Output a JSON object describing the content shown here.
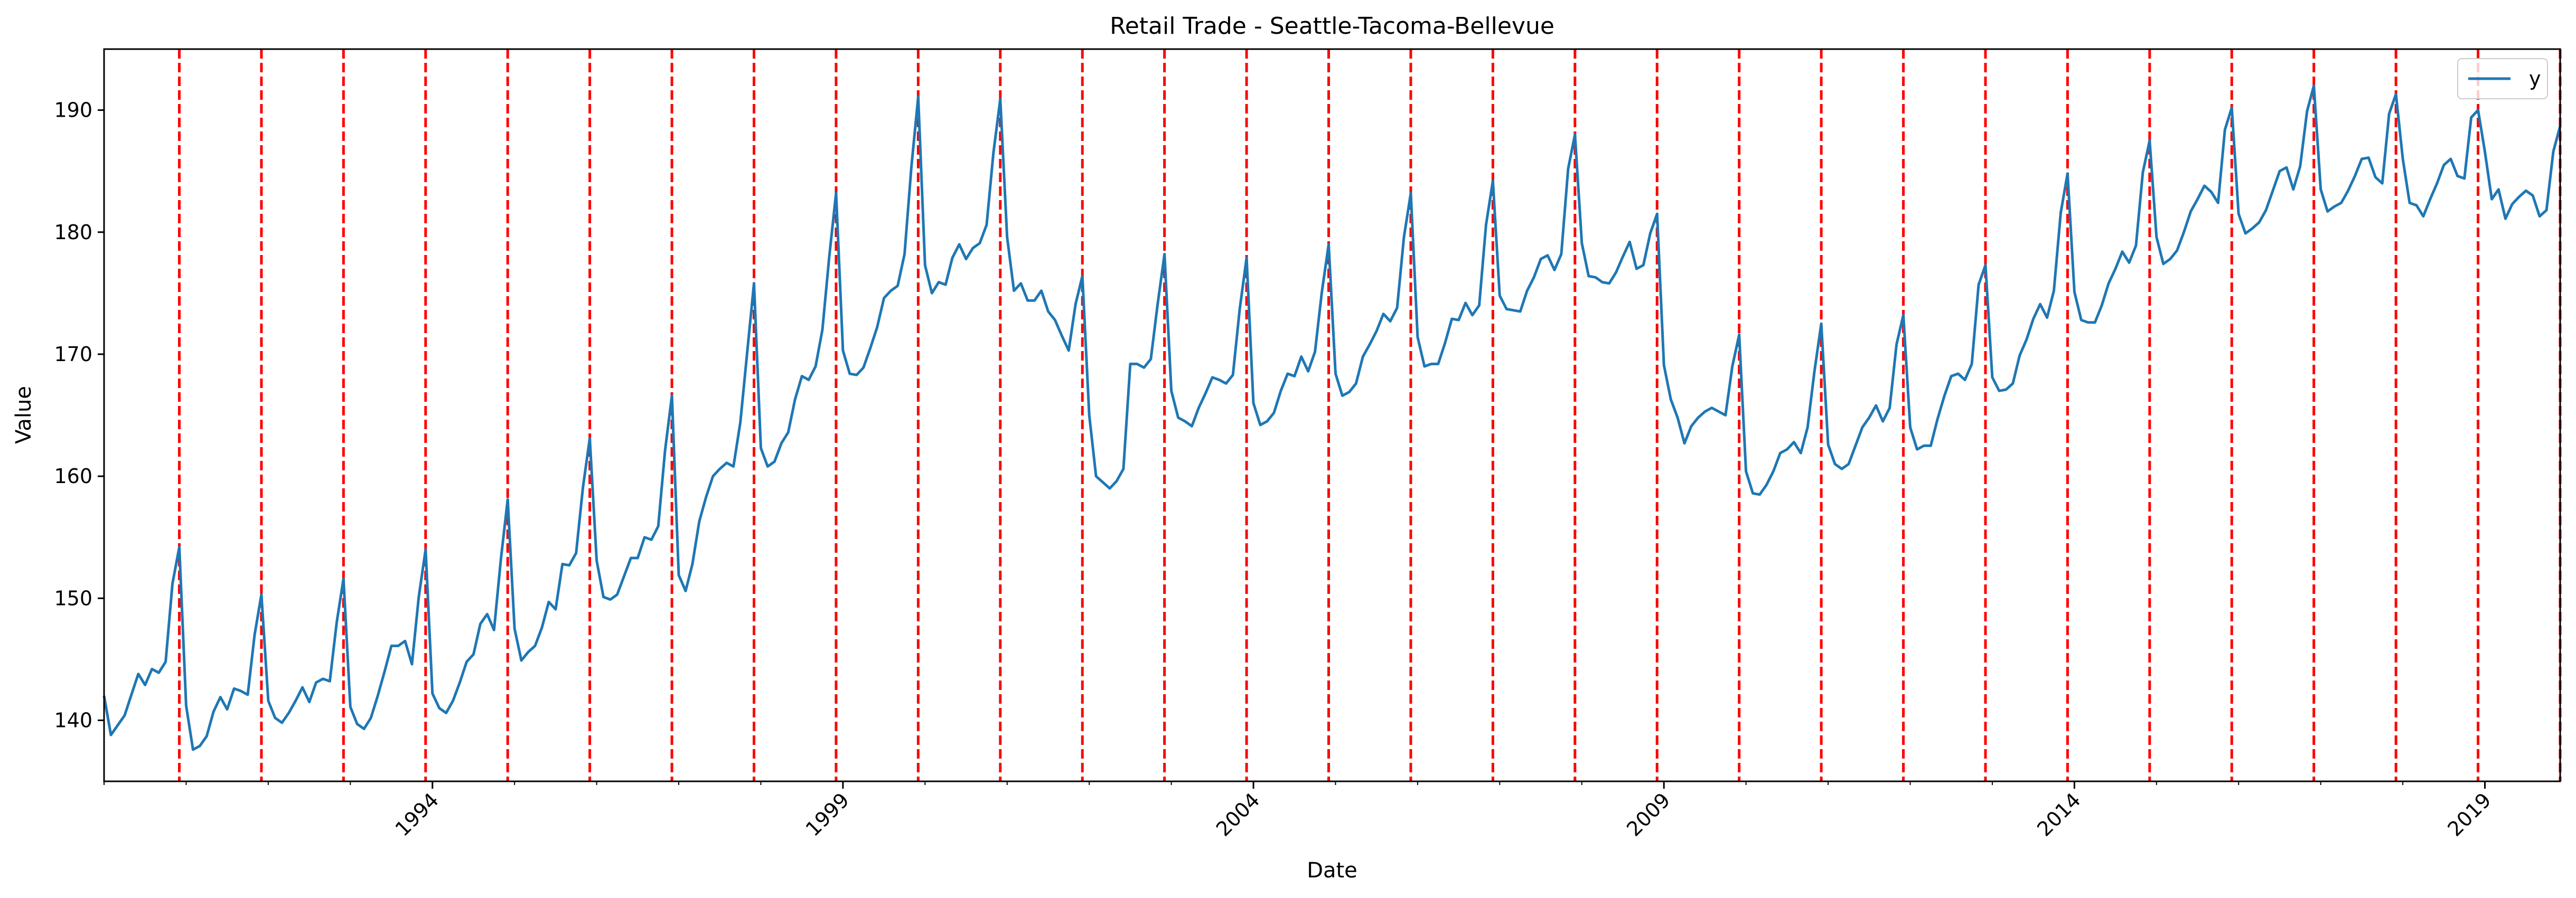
{
  "chart_data": {
    "type": "line",
    "title": "Retail Trade - Seattle-Tacoma-Bellevue",
    "xlabel": "Date",
    "ylabel": "Value",
    "x_range": [
      "1990-01",
      "2019-12"
    ],
    "ylim": [
      135,
      195
    ],
    "y_ticks": [
      140,
      150,
      160,
      170,
      180,
      190
    ],
    "x_ticks": [
      "1994",
      "1999",
      "2004",
      "2009",
      "2014",
      "2019"
    ],
    "grid": false,
    "legend_position": "top-right",
    "series": [
      {
        "name": "y",
        "color": "#1f77b4",
        "x_start": "1990-01",
        "frequency": "monthly",
        "values": [
          142.0,
          138.8,
          139.6,
          140.4,
          142.1,
          143.8,
          142.9,
          144.2,
          143.9,
          144.8,
          151.2,
          154.2,
          141.2,
          137.6,
          137.9,
          138.7,
          140.7,
          141.9,
          140.9,
          142.6,
          142.4,
          142.1,
          147.0,
          150.3,
          141.6,
          140.2,
          139.8,
          140.6,
          141.6,
          142.7,
          141.5,
          143.1,
          143.4,
          143.2,
          148.0,
          151.6,
          141.1,
          139.7,
          139.3,
          140.2,
          142.0,
          144.0,
          146.1,
          146.1,
          146.5,
          144.6,
          150.1,
          154.0,
          142.2,
          141.0,
          140.6,
          141.6,
          143.1,
          144.8,
          145.4,
          147.9,
          148.7,
          147.4,
          153.2,
          158.1,
          147.5,
          144.9,
          145.6,
          146.1,
          147.6,
          149.7,
          149.1,
          152.8,
          152.7,
          153.7,
          159.1,
          163.1,
          153.1,
          150.1,
          149.9,
          150.3,
          151.8,
          153.3,
          153.3,
          155.0,
          154.8,
          155.9,
          162.1,
          166.6,
          151.9,
          150.6,
          152.8,
          156.3,
          158.3,
          160.0,
          160.6,
          161.1,
          160.8,
          164.4,
          170.1,
          175.8,
          162.3,
          160.8,
          161.2,
          162.7,
          163.6,
          166.3,
          168.2,
          167.9,
          169.0,
          172.0,
          178.0,
          183.2,
          170.3,
          168.4,
          168.3,
          168.9,
          170.5,
          172.2,
          174.6,
          175.2,
          175.6,
          178.2,
          185.3,
          191.1,
          177.3,
          175.0,
          175.9,
          175.7,
          177.9,
          179.0,
          177.8,
          178.7,
          179.1,
          180.6,
          186.5,
          190.9,
          179.6,
          175.2,
          175.8,
          174.4,
          174.4,
          175.2,
          173.5,
          172.8,
          171.5,
          170.3,
          174.1,
          176.4,
          165.0,
          160.0,
          159.5,
          159.0,
          159.6,
          160.6,
          169.2,
          169.2,
          168.9,
          169.6,
          174.1,
          178.2,
          167.0,
          164.8,
          164.5,
          164.1,
          165.6,
          166.8,
          168.1,
          167.9,
          167.6,
          168.3,
          173.7,
          177.9,
          166.0,
          164.2,
          164.5,
          165.2,
          167.0,
          168.4,
          168.2,
          169.8,
          168.6,
          170.2,
          175.1,
          179.0,
          168.4,
          166.6,
          166.9,
          167.6,
          169.8,
          170.8,
          171.9,
          173.3,
          172.7,
          173.8,
          179.6,
          183.2,
          171.4,
          169.0,
          169.2,
          169.2,
          170.9,
          172.9,
          172.8,
          174.2,
          173.2,
          174.0,
          180.6,
          184.2,
          174.8,
          173.7,
          173.6,
          173.5,
          175.2,
          176.3,
          177.8,
          178.1,
          176.9,
          178.2,
          185.2,
          188.0,
          179.1,
          176.4,
          176.3,
          175.9,
          175.8,
          176.7,
          178.0,
          179.2,
          177.0,
          177.3,
          179.9,
          181.5,
          169.1,
          166.3,
          164.8,
          162.7,
          164.1,
          164.8,
          165.3,
          165.6,
          165.3,
          165.0,
          169.0,
          171.6,
          160.4,
          158.6,
          158.5,
          159.3,
          160.4,
          161.9,
          162.2,
          162.8,
          161.9,
          164.0,
          168.6,
          172.5,
          162.6,
          161.0,
          160.6,
          161.0,
          162.5,
          164.0,
          164.8,
          165.8,
          164.5,
          165.6,
          170.8,
          173.2,
          164.0,
          162.2,
          162.5,
          162.5,
          164.7,
          166.6,
          168.2,
          168.4,
          167.9,
          169.2,
          175.7,
          177.3,
          168.1,
          167.0,
          167.1,
          167.6,
          169.9,
          171.2,
          172.9,
          174.1,
          173.0,
          175.2,
          181.6,
          184.8,
          175.1,
          172.8,
          172.6,
          172.6,
          174.0,
          175.8,
          177.0,
          178.4,
          177.5,
          178.9,
          184.9,
          187.5,
          179.6,
          177.4,
          177.8,
          178.5,
          180.0,
          181.7,
          182.7,
          183.8,
          183.3,
          182.4,
          188.4,
          190.2,
          181.5,
          179.9,
          180.3,
          180.8,
          181.8,
          183.4,
          185.0,
          185.3,
          183.5,
          185.4,
          189.9,
          192.0,
          183.5,
          181.7,
          182.1,
          182.4,
          183.4,
          184.6,
          186.0,
          186.1,
          184.5,
          184.0,
          189.7,
          191.3,
          186.0,
          182.4,
          182.2,
          181.3,
          182.7,
          184.0,
          185.5,
          186.0,
          184.6,
          184.4,
          189.4,
          190.0,
          186.6,
          182.7,
          183.5,
          181.1,
          182.3,
          182.9,
          183.4,
          183.0,
          181.3,
          181.8,
          186.6,
          188.7
        ]
      }
    ],
    "annotations": {
      "vertical_lines": {
        "color": "#ff0000",
        "style": "dashed",
        "dates": [
          "1990-12",
          "1991-12",
          "1992-12",
          "1993-12",
          "1994-12",
          "1995-12",
          "1996-12",
          "1997-12",
          "1998-12",
          "1999-12",
          "2000-12",
          "2001-12",
          "2002-12",
          "2003-12",
          "2004-12",
          "2005-12",
          "2006-12",
          "2007-12",
          "2008-12",
          "2009-12",
          "2010-12",
          "2011-12",
          "2012-12",
          "2013-12",
          "2014-12",
          "2015-12",
          "2016-12",
          "2017-12",
          "2018-12",
          "2019-12"
        ]
      }
    }
  }
}
